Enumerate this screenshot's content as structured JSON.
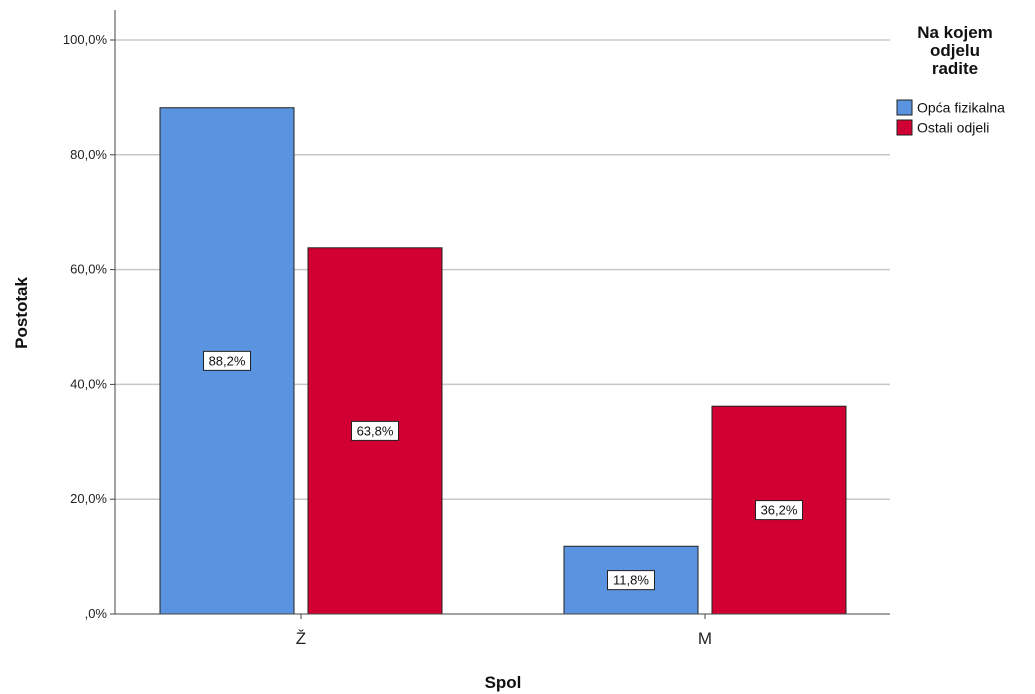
{
  "chart_data": {
    "type": "bar",
    "xlabel": "Spol",
    "ylabel": "Postotak",
    "categories": [
      "Ž",
      "M"
    ],
    "ylim": [
      0,
      100
    ],
    "yticks": [
      0,
      20,
      40,
      60,
      80,
      100
    ],
    "ytick_labels": [
      ",0%",
      "20,0%",
      "40,0%",
      "60,0%",
      "80,0%",
      "100,0%"
    ],
    "grid": true,
    "legend": {
      "title": "Na kojem odjelu radite",
      "title_lines": [
        "Na kojem",
        "odjelu",
        "radite"
      ],
      "position": "top-right"
    },
    "series": [
      {
        "name": "Opća fizikalna",
        "color": "#5a93e0",
        "values": [
          88.2,
          11.8
        ],
        "labels": [
          "88,2%",
          "11,8%"
        ]
      },
      {
        "name": "Ostali odjeli",
        "color": "#d20032",
        "values": [
          63.8,
          36.2
        ],
        "labels": [
          "63,8%",
          "36,2%"
        ]
      }
    ]
  }
}
